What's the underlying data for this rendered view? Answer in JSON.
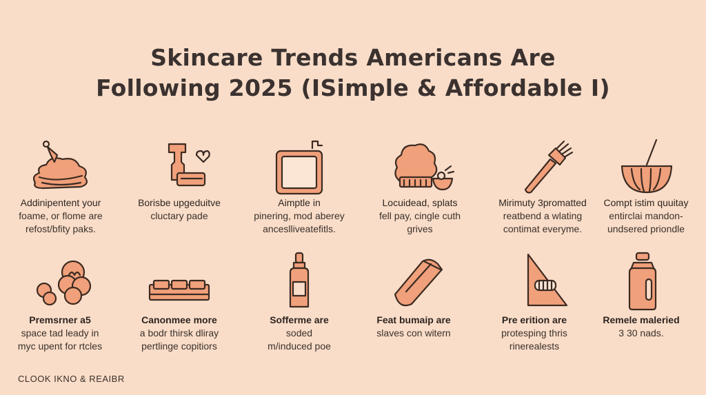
{
  "title": {
    "line1": "Skincare Trends Americans Are",
    "line2": "Following 2025 (ISimple & Affordable I)"
  },
  "colors": {
    "background": "#f9ddc8",
    "icon_fill": "#f0a07a",
    "icon_stroke": "#3b2a22",
    "text": "#2d2420"
  },
  "items": [
    {
      "icon": "cream-swirl-icon",
      "label": "Addinipentent your",
      "lines": [
        "foame, or flome are",
        "refost/bfity paks."
      ]
    },
    {
      "icon": "skincare-tool-heart-icon",
      "label": "Borisbe upgeduitve",
      "lines": [
        "cluctary pade"
      ]
    },
    {
      "icon": "mirror-frame-icon",
      "label": "Aimptle in",
      "lines": [
        "pinering, mod aberey",
        "anceslliveatefitls."
      ]
    },
    {
      "icon": "sponge-bowl-icon",
      "label": "Locuidead, splats",
      "lines": [
        "fell pay, cingle cuth",
        "grives"
      ]
    },
    {
      "icon": "brush-applicator-icon",
      "label": "Mirimuty 3promatted",
      "lines": [
        "reatbend a wlating",
        "contimat everyme."
      ]
    },
    {
      "icon": "mixing-bowl-icon",
      "label": "Compt istim quuitay",
      "lines": [
        "entirclai mandon-",
        "undsered priondle"
      ]
    },
    {
      "icon": "flower-cluster-icon",
      "label": "Premsrner a5",
      "lines": [
        "space tad leady in",
        "myc upent for rtcles"
      ]
    },
    {
      "icon": "pill-tray-icon",
      "label": "Canonmee more",
      "lines": [
        "a bodr thirsk dliray",
        "pertlinge copitiors"
      ]
    },
    {
      "icon": "serum-bottle-icon",
      "label": "Sofferme are",
      "lines": [
        "soded",
        "m/induced poe"
      ]
    },
    {
      "icon": "patch-pad-icon",
      "label": "Feat bumaip are",
      "lines": [
        "slaves con witern"
      ]
    },
    {
      "icon": "triangle-grill-icon",
      "label": "Pre erition are",
      "lines": [
        "protesping thris",
        "rinerealests"
      ]
    },
    {
      "icon": "spray-bottle-icon",
      "label": "Remele maleried",
      "lines": [
        "3 30 nads."
      ]
    }
  ],
  "footer": "CLOOK IKNO & REAIBR"
}
